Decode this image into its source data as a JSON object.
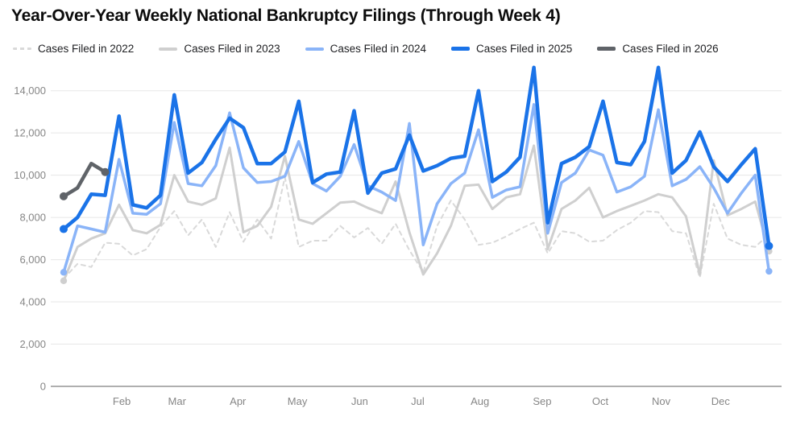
{
  "title": "Year-Over-Year Weekly National Bankruptcy Filings (Through Week 4)",
  "legend": [
    {
      "label": "Cases Filed in 2022",
      "color": "#d9d9d9",
      "line_style": "dashed",
      "thickness": 3
    },
    {
      "label": "Cases Filed in 2023",
      "color": "#cfcfcf",
      "line_style": "solid",
      "thickness": 4
    },
    {
      "label": "Cases Filed in 2024",
      "color": "#8ab4f8",
      "line_style": "solid",
      "thickness": 4
    },
    {
      "label": "Cases Filed in 2025",
      "color": "#1a73e8",
      "line_style": "solid",
      "thickness": 5
    },
    {
      "label": "Cases Filed in 2026",
      "color": "#5f6368",
      "line_style": "solid",
      "thickness": 5
    }
  ],
  "chart_data": {
    "type": "line",
    "title": "Year-Over-Year Weekly National Bankruptcy Filings (Through Week 4)",
    "xlabel": "",
    "ylabel": "",
    "x_unit": "week-of-year",
    "x_range": [
      1,
      52
    ],
    "ylim": [
      0,
      14000
    ],
    "y_ticks": [
      0,
      2000,
      4000,
      6000,
      8000,
      10000,
      12000,
      14000
    ],
    "grid": "horizontal",
    "legend_position": "top",
    "month_labels": [
      "Feb",
      "Mar",
      "Apr",
      "May",
      "Jun",
      "Jul",
      "Aug",
      "Sep",
      "Oct",
      "Nov",
      "Dec"
    ],
    "month_label_weeks": [
      5.2,
      9.2,
      13.6,
      17.9,
      22.4,
      26.6,
      31.1,
      35.6,
      39.8,
      44.2,
      48.5
    ],
    "series": [
      {
        "name": "Cases Filed in 2022",
        "color": "#d9d9d9",
        "style": "dashed",
        "width": 2,
        "markers": false,
        "values": [
          5100,
          5800,
          5650,
          6800,
          6750,
          6200,
          6500,
          7550,
          8300,
          7150,
          7900,
          6600,
          8250,
          6850,
          7900,
          7000,
          9900,
          6600,
          6900,
          6900,
          7600,
          7050,
          7500,
          6750,
          7700,
          6450,
          5400,
          7600,
          8800,
          7900,
          6700,
          6800,
          7100,
          7450,
          7750,
          6300,
          7350,
          7250,
          6850,
          6900,
          7400,
          7750,
          8300,
          8250,
          7350,
          7250,
          5150,
          8650,
          7000,
          6700,
          6600,
          7200
        ]
      },
      {
        "name": "Cases Filed in 2023",
        "color": "#cfcfcf",
        "style": "solid",
        "width": 3,
        "markers": true,
        "values": [
          5000,
          6600,
          7000,
          7250,
          8600,
          7400,
          7250,
          7650,
          10000,
          8750,
          8600,
          8900,
          11300,
          7300,
          7600,
          8500,
          10900,
          7900,
          7700,
          8200,
          8700,
          8750,
          8450,
          8200,
          9700,
          7300,
          5300,
          6300,
          7600,
          9500,
          9550,
          8400,
          8950,
          9100,
          11400,
          6500,
          8400,
          8800,
          9400,
          8000,
          8300,
          8550,
          8800,
          9100,
          8950,
          8050,
          5300,
          10700,
          8100,
          8400,
          8750,
          6400
        ]
      },
      {
        "name": "Cases Filed in 2024",
        "color": "#8ab4f8",
        "style": "solid",
        "width": 3.5,
        "markers": true,
        "values": [
          5400,
          7600,
          7450,
          7300,
          10750,
          8200,
          8150,
          8650,
          12500,
          9600,
          9500,
          10450,
          12950,
          10350,
          9650,
          9700,
          9950,
          11600,
          9600,
          9250,
          9950,
          11450,
          9500,
          9200,
          8800,
          12450,
          6700,
          8650,
          9600,
          10100,
          12150,
          8950,
          9300,
          9450,
          13350,
          7250,
          9650,
          10100,
          11200,
          10950,
          9200,
          9450,
          9950,
          13100,
          9500,
          9800,
          10400,
          9400,
          8200,
          9150,
          10000,
          5450
        ]
      },
      {
        "name": "Cases Filed in 2025",
        "color": "#1a73e8",
        "style": "solid",
        "width": 4.5,
        "markers": true,
        "values": [
          7450,
          8000,
          9100,
          9050,
          12800,
          8600,
          8450,
          9050,
          13800,
          10100,
          10600,
          11700,
          12700,
          12250,
          10550,
          10550,
          11100,
          13500,
          9650,
          10050,
          10150,
          13050,
          9150,
          10100,
          10300,
          11900,
          10200,
          10450,
          10800,
          10900,
          14000,
          9700,
          10150,
          10850,
          15100,
          7750,
          10550,
          10850,
          11350,
          13500,
          10600,
          10500,
          11600,
          15100,
          10100,
          10700,
          12050,
          10400,
          9700,
          10500,
          11250,
          6650
        ]
      },
      {
        "name": "Cases Filed in 2026",
        "color": "#5f6368",
        "style": "solid",
        "width": 4.5,
        "markers": true,
        "values": [
          9000,
          9400,
          10550,
          10150
        ]
      }
    ]
  },
  "axes": {
    "y_tick_labels": [
      "0",
      "2,000",
      "4,000",
      "6,000",
      "8,000",
      "10,000",
      "12,000",
      "14,000"
    ],
    "tick_color": "#868686"
  }
}
